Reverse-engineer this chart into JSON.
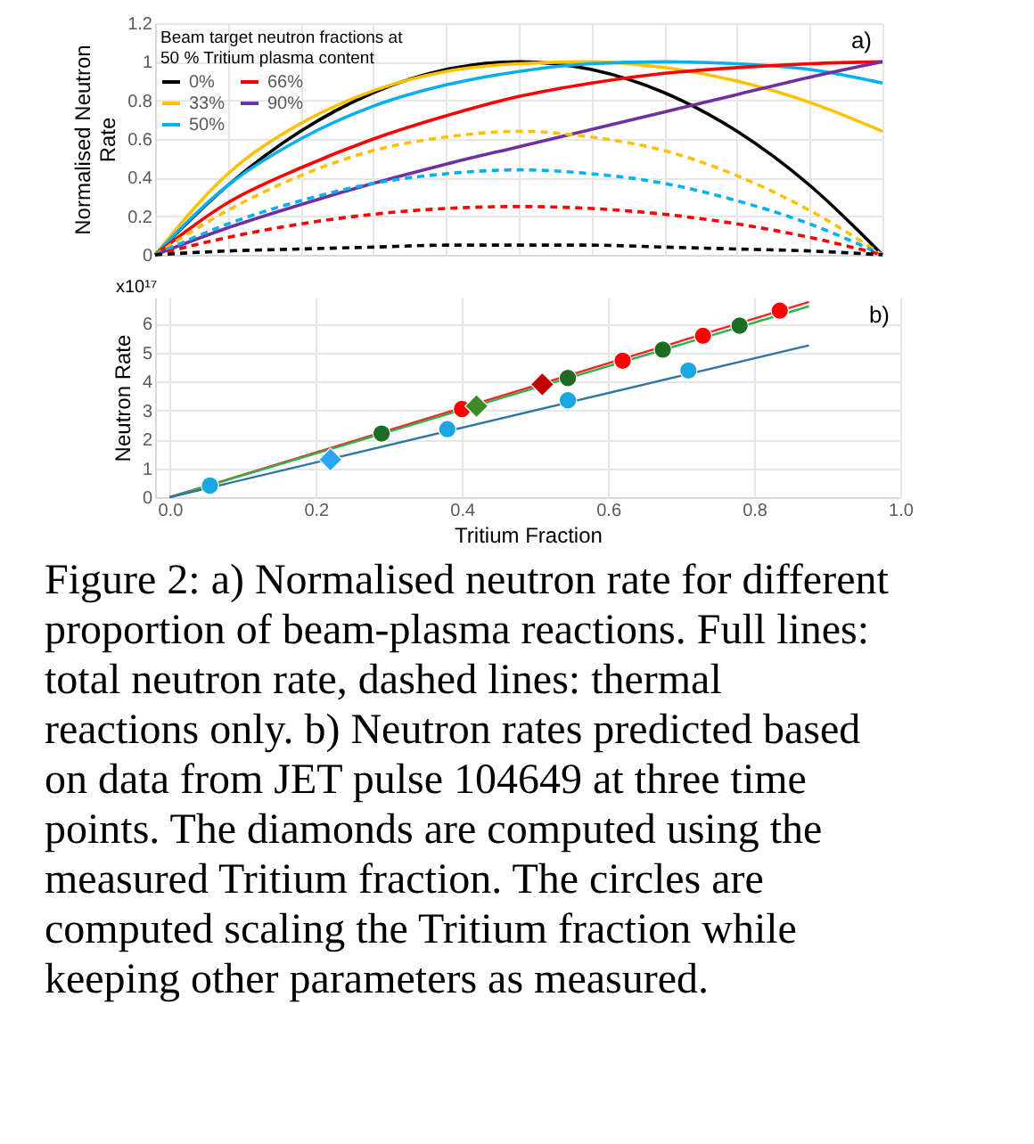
{
  "chart_data": [
    {
      "type": "line",
      "ylabel": "Normalised Neutron Rate",
      "legend_title": "Beam target neutron fractions at 50 % Tritium plasma content",
      "legend": "top left",
      "grid": true,
      "tick_labels": "y",
      "marker": "none",
      "categories": [
        null,
        null,
        null,
        null,
        null,
        null,
        null,
        null,
        null,
        null,
        null
      ],
      "ylim": [
        0,
        1.2
      ],
      "yticks": [
        0,
        0.2,
        0.4,
        0.6,
        0.8,
        1,
        1.2
      ],
      "annotations": [
        "a)"
      ],
      "series": [
        {
          "name": "0%",
          "color": "#000000",
          "line_style": "solid",
          "values": [
            0,
            0.36,
            0.64,
            0.84,
            0.96,
            1.0,
            0.96,
            0.84,
            0.64,
            0.36,
            0
          ]
        },
        {
          "name": "33%",
          "color": "#ffc000",
          "line_style": "solid",
          "values": [
            0,
            0.42,
            0.68,
            0.85,
            0.95,
            0.99,
            1.0,
            0.97,
            0.9,
            0.79,
            0.64
          ]
        },
        {
          "name": "50%",
          "color": "#00b0f0",
          "line_style": "solid",
          "values": [
            0,
            0.36,
            0.6,
            0.77,
            0.88,
            0.95,
            0.99,
            1.0,
            0.99,
            0.96,
            0.89
          ]
        },
        {
          "name": "66%",
          "color": "#ff0000",
          "line_style": "solid",
          "values": [
            0,
            0.27,
            0.45,
            0.6,
            0.72,
            0.82,
            0.89,
            0.94,
            0.97,
            0.99,
            1.0
          ]
        },
        {
          "name": "90%",
          "color": "#7030a0",
          "line_style": "solid",
          "values": [
            0,
            0.14,
            0.26,
            0.37,
            0.47,
            0.56,
            0.65,
            0.74,
            0.83,
            0.92,
            1.0
          ]
        },
        {
          "color": "#ffc000",
          "line_style": "dashed",
          "values": [
            0,
            0.23,
            0.41,
            0.54,
            0.61,
            0.64,
            0.61,
            0.54,
            0.41,
            0.23,
            0
          ]
        },
        {
          "color": "#00b0f0",
          "line_style": "dashed",
          "values": [
            0,
            0.16,
            0.28,
            0.37,
            0.42,
            0.44,
            0.42,
            0.37,
            0.28,
            0.16,
            0
          ]
        },
        {
          "color": "#ff0000",
          "line_style": "dashed",
          "values": [
            0,
            0.09,
            0.16,
            0.21,
            0.24,
            0.25,
            0.24,
            0.21,
            0.16,
            0.09,
            0
          ]
        },
        {
          "color": "#000000",
          "line_style": "dashed",
          "values": [
            0,
            0.02,
            0.03,
            0.04,
            0.05,
            0.05,
            0.05,
            0.04,
            0.03,
            0.02,
            0
          ]
        }
      ]
    },
    {
      "type": "scatter",
      "xlabel": "Tritium Fraction",
      "ylabel": "Neutron Rate",
      "grid": true,
      "xlim": [
        -0.02,
        1.0
      ],
      "xticks": [
        {
          "value": 0,
          "label": "0.0"
        },
        {
          "value": 0.2,
          "label": "0.2"
        },
        {
          "value": 0.4,
          "label": "0.4"
        },
        {
          "value": 0.6,
          "label": "0.6"
        },
        {
          "value": 0.8,
          "label": "0.8"
        },
        {
          "value": 1,
          "label": "1.0"
        }
      ],
      "ylim": [
        0,
        6.9
      ],
      "yticks": [
        0,
        1,
        2,
        3,
        4,
        5,
        6
      ],
      "annotations": [
        "x10¹⁷",
        "b)",
        "Figure 2: a) Normalised neutron rate for different proportion of beam-plasma reactions. Full lines: total neutron rate, dashed lines: thermal reactions only. b) Neutron rates predicted based on data from JET pulse 104649 at three time points. The diamonds are computed using the measured Tritium fraction. The circles are computed scaling the Tritium fraction while keeping other parameters as measured."
      ],
      "series": [
        {
          "type": "line",
          "color": "#ff2020",
          "x": [
            0,
            0.875
          ],
          "values": [
            0,
            6.75
          ]
        },
        {
          "type": "line",
          "color": "#2db34a",
          "x": [
            0,
            0.875
          ],
          "values": [
            0,
            6.6
          ]
        },
        {
          "type": "line",
          "color": "#2e75a6",
          "x": [
            0,
            0.875
          ],
          "values": [
            0,
            5.25
          ]
        },
        {
          "color": "#ff0000",
          "marker": "circle",
          "x": [
            0.4,
            0.62,
            0.73,
            0.835
          ],
          "values": [
            3.05,
            4.72,
            5.58,
            6.45
          ]
        },
        {
          "color": "#c00000",
          "marker": "diamond",
          "x": [
            0.51
          ],
          "values": [
            3.9
          ]
        },
        {
          "color": "#1e6b23",
          "marker": "circle",
          "x": [
            0.29,
            0.545,
            0.675,
            0.78
          ],
          "values": [
            2.2,
            4.12,
            5.1,
            5.93
          ]
        },
        {
          "color": "#3f8a24",
          "marker": "diamond",
          "x": [
            0.42
          ],
          "values": [
            3.15
          ]
        },
        {
          "color": "#1aa7e0",
          "marker": "circle",
          "x": [
            0.055,
            0.38,
            0.545,
            0.71
          ],
          "values": [
            0.4,
            2.35,
            3.35,
            4.38
          ]
        },
        {
          "color": "#2ba6f0",
          "marker": "diamond",
          "x": [
            0.22
          ],
          "values": [
            1.3
          ]
        }
      ]
    }
  ]
}
